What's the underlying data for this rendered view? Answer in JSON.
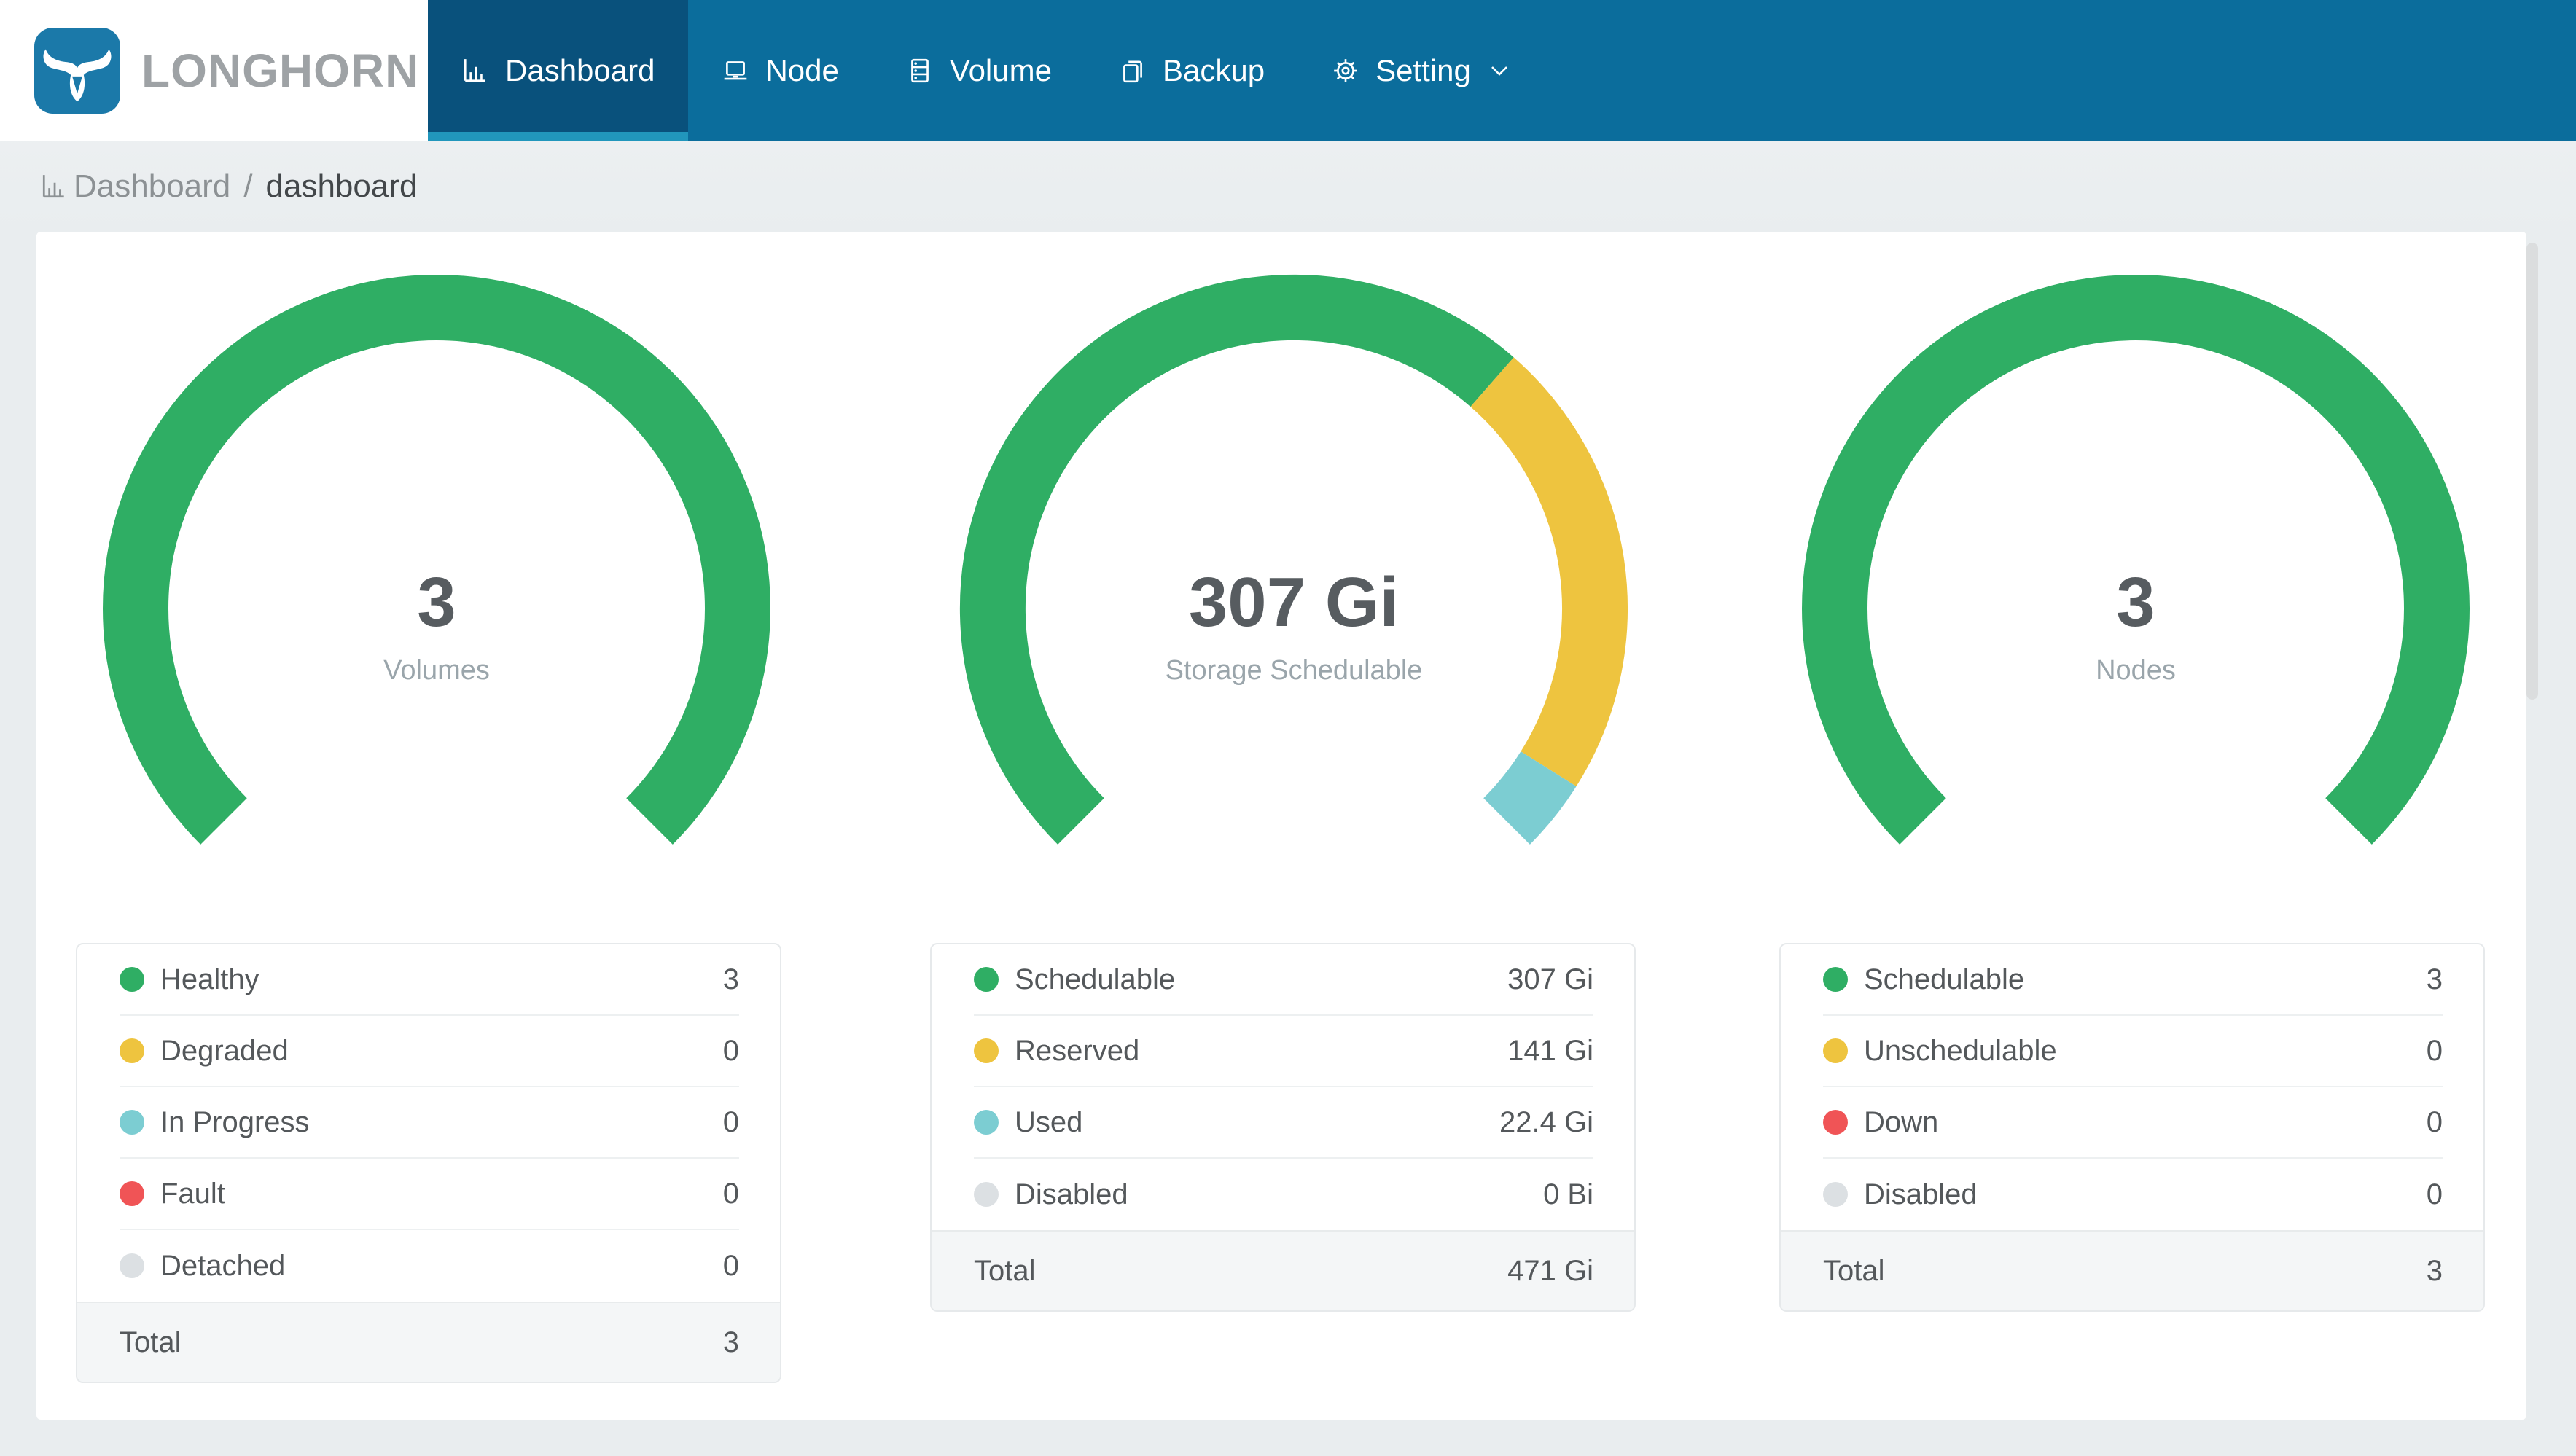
{
  "header": {
    "brand": "LONGHORN",
    "nav": [
      {
        "label": "Dashboard",
        "icon": "bar-chart-icon",
        "active": true
      },
      {
        "label": "Node",
        "icon": "laptop-icon",
        "active": false
      },
      {
        "label": "Volume",
        "icon": "database-icon",
        "active": false
      },
      {
        "label": "Backup",
        "icon": "copy-icon",
        "active": false
      },
      {
        "label": "Setting",
        "icon": "gear-icon",
        "active": false,
        "has_dropdown": true
      }
    ]
  },
  "breadcrumb": {
    "section": "Dashboard",
    "separator": "/",
    "page": "dashboard"
  },
  "colors": {
    "header_bg": "#0B6D9C",
    "active_tab_bg": "#09517C",
    "active_tab_underline": "#2196BC",
    "healthy_green": "#2FAE64",
    "warning_yellow": "#EEC43F",
    "progress_teal": "#7CCDD2",
    "fault_red": "#F05456",
    "disabled_gray": "#DCE0E3"
  },
  "panels": [
    {
      "gauge": {
        "value": "3",
        "label": "Volumes",
        "segments": [
          {
            "name": "Healthy",
            "color": "#2FAE64",
            "sweep_deg": 270
          }
        ]
      },
      "legend": {
        "rows": [
          {
            "label": "Healthy",
            "value": "3",
            "color": "#2FAE64"
          },
          {
            "label": "Degraded",
            "value": "0",
            "color": "#EEC43F"
          },
          {
            "label": "In Progress",
            "value": "0",
            "color": "#7CCDD2"
          },
          {
            "label": "Fault",
            "value": "0",
            "color": "#F05456"
          },
          {
            "label": "Detached",
            "value": "0",
            "color": "#DCE0E3"
          }
        ],
        "total": {
          "label": "Total",
          "value": "3"
        }
      }
    },
    {
      "gauge": {
        "value": "307 Gi",
        "label": "Storage Schedulable",
        "segments": [
          {
            "name": "Schedulable",
            "color": "#2FAE64",
            "sweep_deg": 176.2
          },
          {
            "name": "Reserved",
            "color": "#EEC43F",
            "sweep_deg": 81.0
          },
          {
            "name": "Used",
            "color": "#7CCDD2",
            "sweep_deg": 12.8
          }
        ]
      },
      "legend": {
        "rows": [
          {
            "label": "Schedulable",
            "value": "307 Gi",
            "color": "#2FAE64"
          },
          {
            "label": "Reserved",
            "value": "141 Gi",
            "color": "#EEC43F"
          },
          {
            "label": "Used",
            "value": "22.4 Gi",
            "color": "#7CCDD2"
          },
          {
            "label": "Disabled",
            "value": "0 Bi",
            "color": "#DCE0E3"
          }
        ],
        "total": {
          "label": "Total",
          "value": "471 Gi"
        }
      }
    },
    {
      "gauge": {
        "value": "3",
        "label": "Nodes",
        "segments": [
          {
            "name": "Schedulable",
            "color": "#2FAE64",
            "sweep_deg": 270
          }
        ]
      },
      "legend": {
        "rows": [
          {
            "label": "Schedulable",
            "value": "3",
            "color": "#2FAE64"
          },
          {
            "label": "Unschedulable",
            "value": "0",
            "color": "#EEC43F"
          },
          {
            "label": "Down",
            "value": "0",
            "color": "#F05456"
          },
          {
            "label": "Disabled",
            "value": "0",
            "color": "#DCE0E3"
          }
        ],
        "total": {
          "label": "Total",
          "value": "3"
        }
      }
    }
  ],
  "chart_data": [
    {
      "type": "gauge",
      "title": "Volumes",
      "center_value": "3",
      "arc_degrees": 270,
      "series": [
        {
          "name": "Healthy",
          "value": 3
        },
        {
          "name": "Degraded",
          "value": 0
        },
        {
          "name": "In Progress",
          "value": 0
        },
        {
          "name": "Fault",
          "value": 0
        },
        {
          "name": "Detached",
          "value": 0
        }
      ],
      "total": 3
    },
    {
      "type": "gauge",
      "title": "Storage Schedulable",
      "center_value": "307 Gi",
      "arc_degrees": 270,
      "unit": "Gi",
      "series": [
        {
          "name": "Schedulable",
          "value": 307
        },
        {
          "name": "Reserved",
          "value": 141
        },
        {
          "name": "Used",
          "value": 22.4
        },
        {
          "name": "Disabled",
          "value": 0
        }
      ],
      "total": 471
    },
    {
      "type": "gauge",
      "title": "Nodes",
      "center_value": "3",
      "arc_degrees": 270,
      "series": [
        {
          "name": "Schedulable",
          "value": 3
        },
        {
          "name": "Unschedulable",
          "value": 0
        },
        {
          "name": "Down",
          "value": 0
        },
        {
          "name": "Disabled",
          "value": 0
        }
      ],
      "total": 3
    }
  ]
}
